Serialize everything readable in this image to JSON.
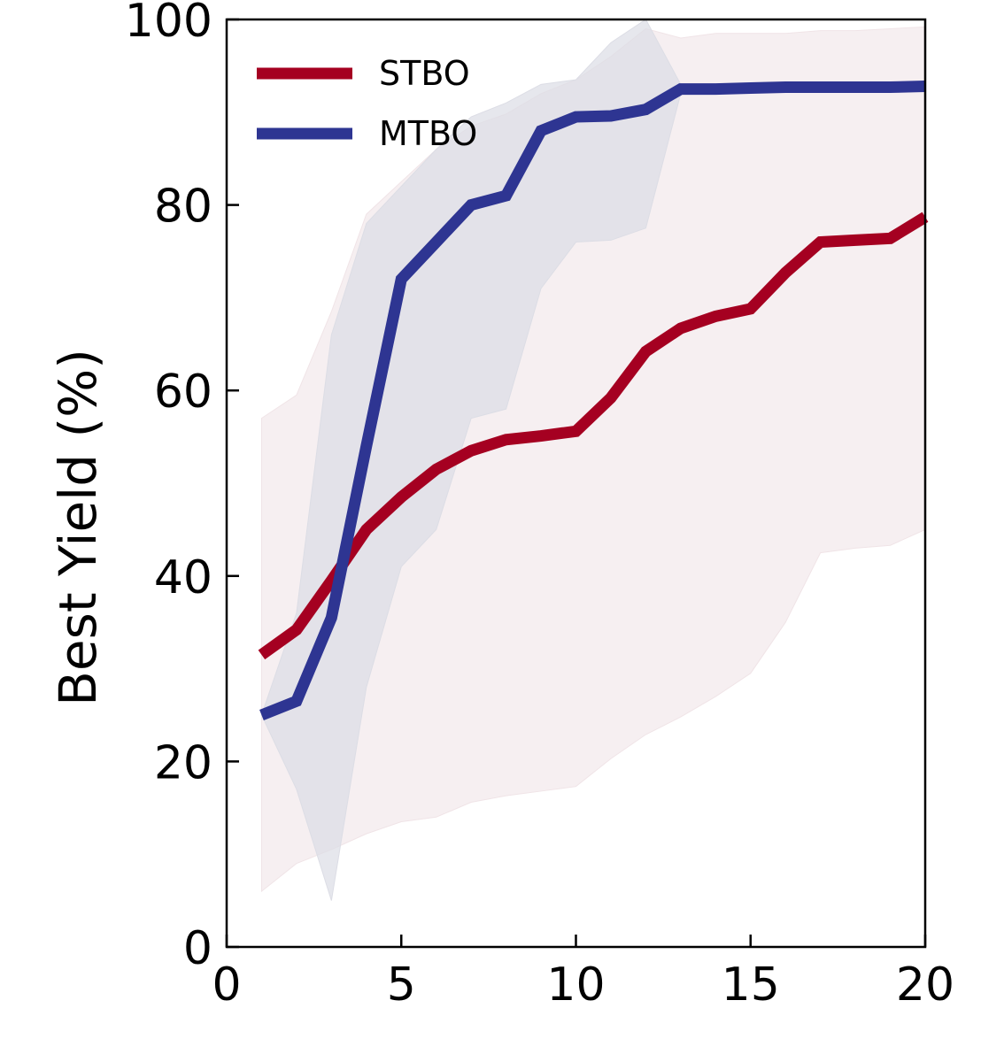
{
  "chart_data": {
    "type": "line",
    "title": "",
    "xlabel": "",
    "ylabel": "Best Yield (%)",
    "xlim": [
      0,
      20
    ],
    "ylim": [
      0,
      100
    ],
    "xticks": [
      0,
      5,
      10,
      15,
      20
    ],
    "yticks": [
      0,
      20,
      40,
      60,
      80,
      100
    ],
    "x": [
      1,
      2,
      3,
      4,
      5,
      6,
      7,
      8,
      9,
      10,
      11,
      12,
      13,
      14,
      15,
      16,
      17,
      18,
      19,
      20
    ],
    "legend_position": "top-left",
    "series": [
      {
        "name": "STBO",
        "color": "#a50021",
        "band_color": "#f0e4e7",
        "values": [
          31.5,
          34.2,
          39.5,
          45.0,
          48.5,
          51.5,
          53.5,
          54.7,
          55.1,
          55.6,
          59.2,
          64.2,
          66.7,
          68.0,
          68.8,
          72.7,
          76.0,
          76.2,
          76.4,
          78.7
        ],
        "lower": [
          6.0,
          9.0,
          10.5,
          12.2,
          13.5,
          14.0,
          15.6,
          16.3,
          16.8,
          17.3,
          20.3,
          22.9,
          24.8,
          27.0,
          29.5,
          35.0,
          42.5,
          43.0,
          43.3,
          45.0
        ],
        "upper": [
          57.0,
          59.5,
          68.5,
          79.0,
          82.5,
          86.0,
          88.5,
          89.8,
          92.0,
          93.5,
          96.0,
          99.0,
          98.0,
          98.5,
          98.5,
          98.5,
          98.8,
          98.8,
          99.0,
          99.2
        ]
      },
      {
        "name": "MTBO",
        "color": "#2e3592",
        "band_color": "#dcdde5",
        "values": [
          25.0,
          26.5,
          35.5,
          54.0,
          72.0,
          76.0,
          80.0,
          81.0,
          88.0,
          89.5,
          89.6,
          90.3,
          92.5,
          92.5,
          92.6,
          92.7,
          92.7,
          92.7,
          92.7,
          92.8
        ],
        "lower": [
          25.0,
          17.0,
          5.0,
          28.0,
          41.0,
          45.0,
          57.0,
          58.0,
          71.0,
          76.0,
          76.2,
          77.5,
          92.0,
          92.0,
          92.1,
          92.2,
          92.3,
          92.3,
          92.3,
          92.4
        ],
        "upper": [
          25.0,
          36.0,
          66.0,
          78.0,
          82.0,
          86.0,
          89.5,
          91.0,
          93.0,
          93.5,
          97.5,
          100.0,
          93.0,
          93.0,
          93.1,
          93.2,
          93.2,
          93.2,
          93.2,
          93.3
        ]
      }
    ]
  }
}
